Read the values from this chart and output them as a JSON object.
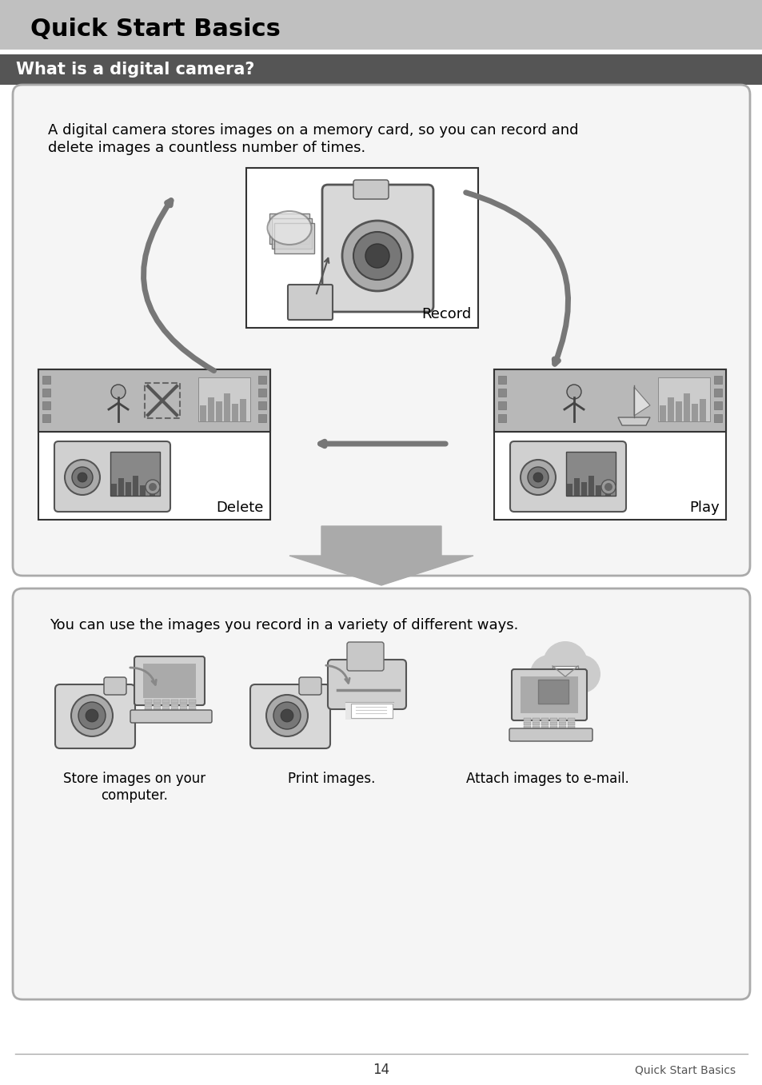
{
  "page_bg": "#ffffff",
  "header_bg": "#c0c0c0",
  "header_text": "Quick Start Basics",
  "header_text_color": "#000000",
  "subheader_bg": "#555555",
  "subheader_text": "What is a digital camera?",
  "subheader_text_color": "#ffffff",
  "box1_text_line1": "A digital camera stores images on a memory card, so you can record and",
  "box1_text_line2": "delete images a countless number of times.",
  "box1_bg": "#f5f5f5",
  "box1_border": "#aaaaaa",
  "record_label": "Record",
  "delete_label": "Delete",
  "play_label": "Play",
  "box2_text": "You can use the images you record in a variety of different ways.",
  "box2_bg": "#f5f5f5",
  "box2_border": "#aaaaaa",
  "caption1": "Store images on your\ncomputer.",
  "caption2": "Print images.",
  "caption3": "Attach images to e-mail.",
  "footer_page": "14",
  "footer_right": "Quick Start Basics",
  "arrow_color": "#777777",
  "dark_gray": "#555555",
  "medium_gray": "#888888",
  "light_gray": "#cccccc"
}
